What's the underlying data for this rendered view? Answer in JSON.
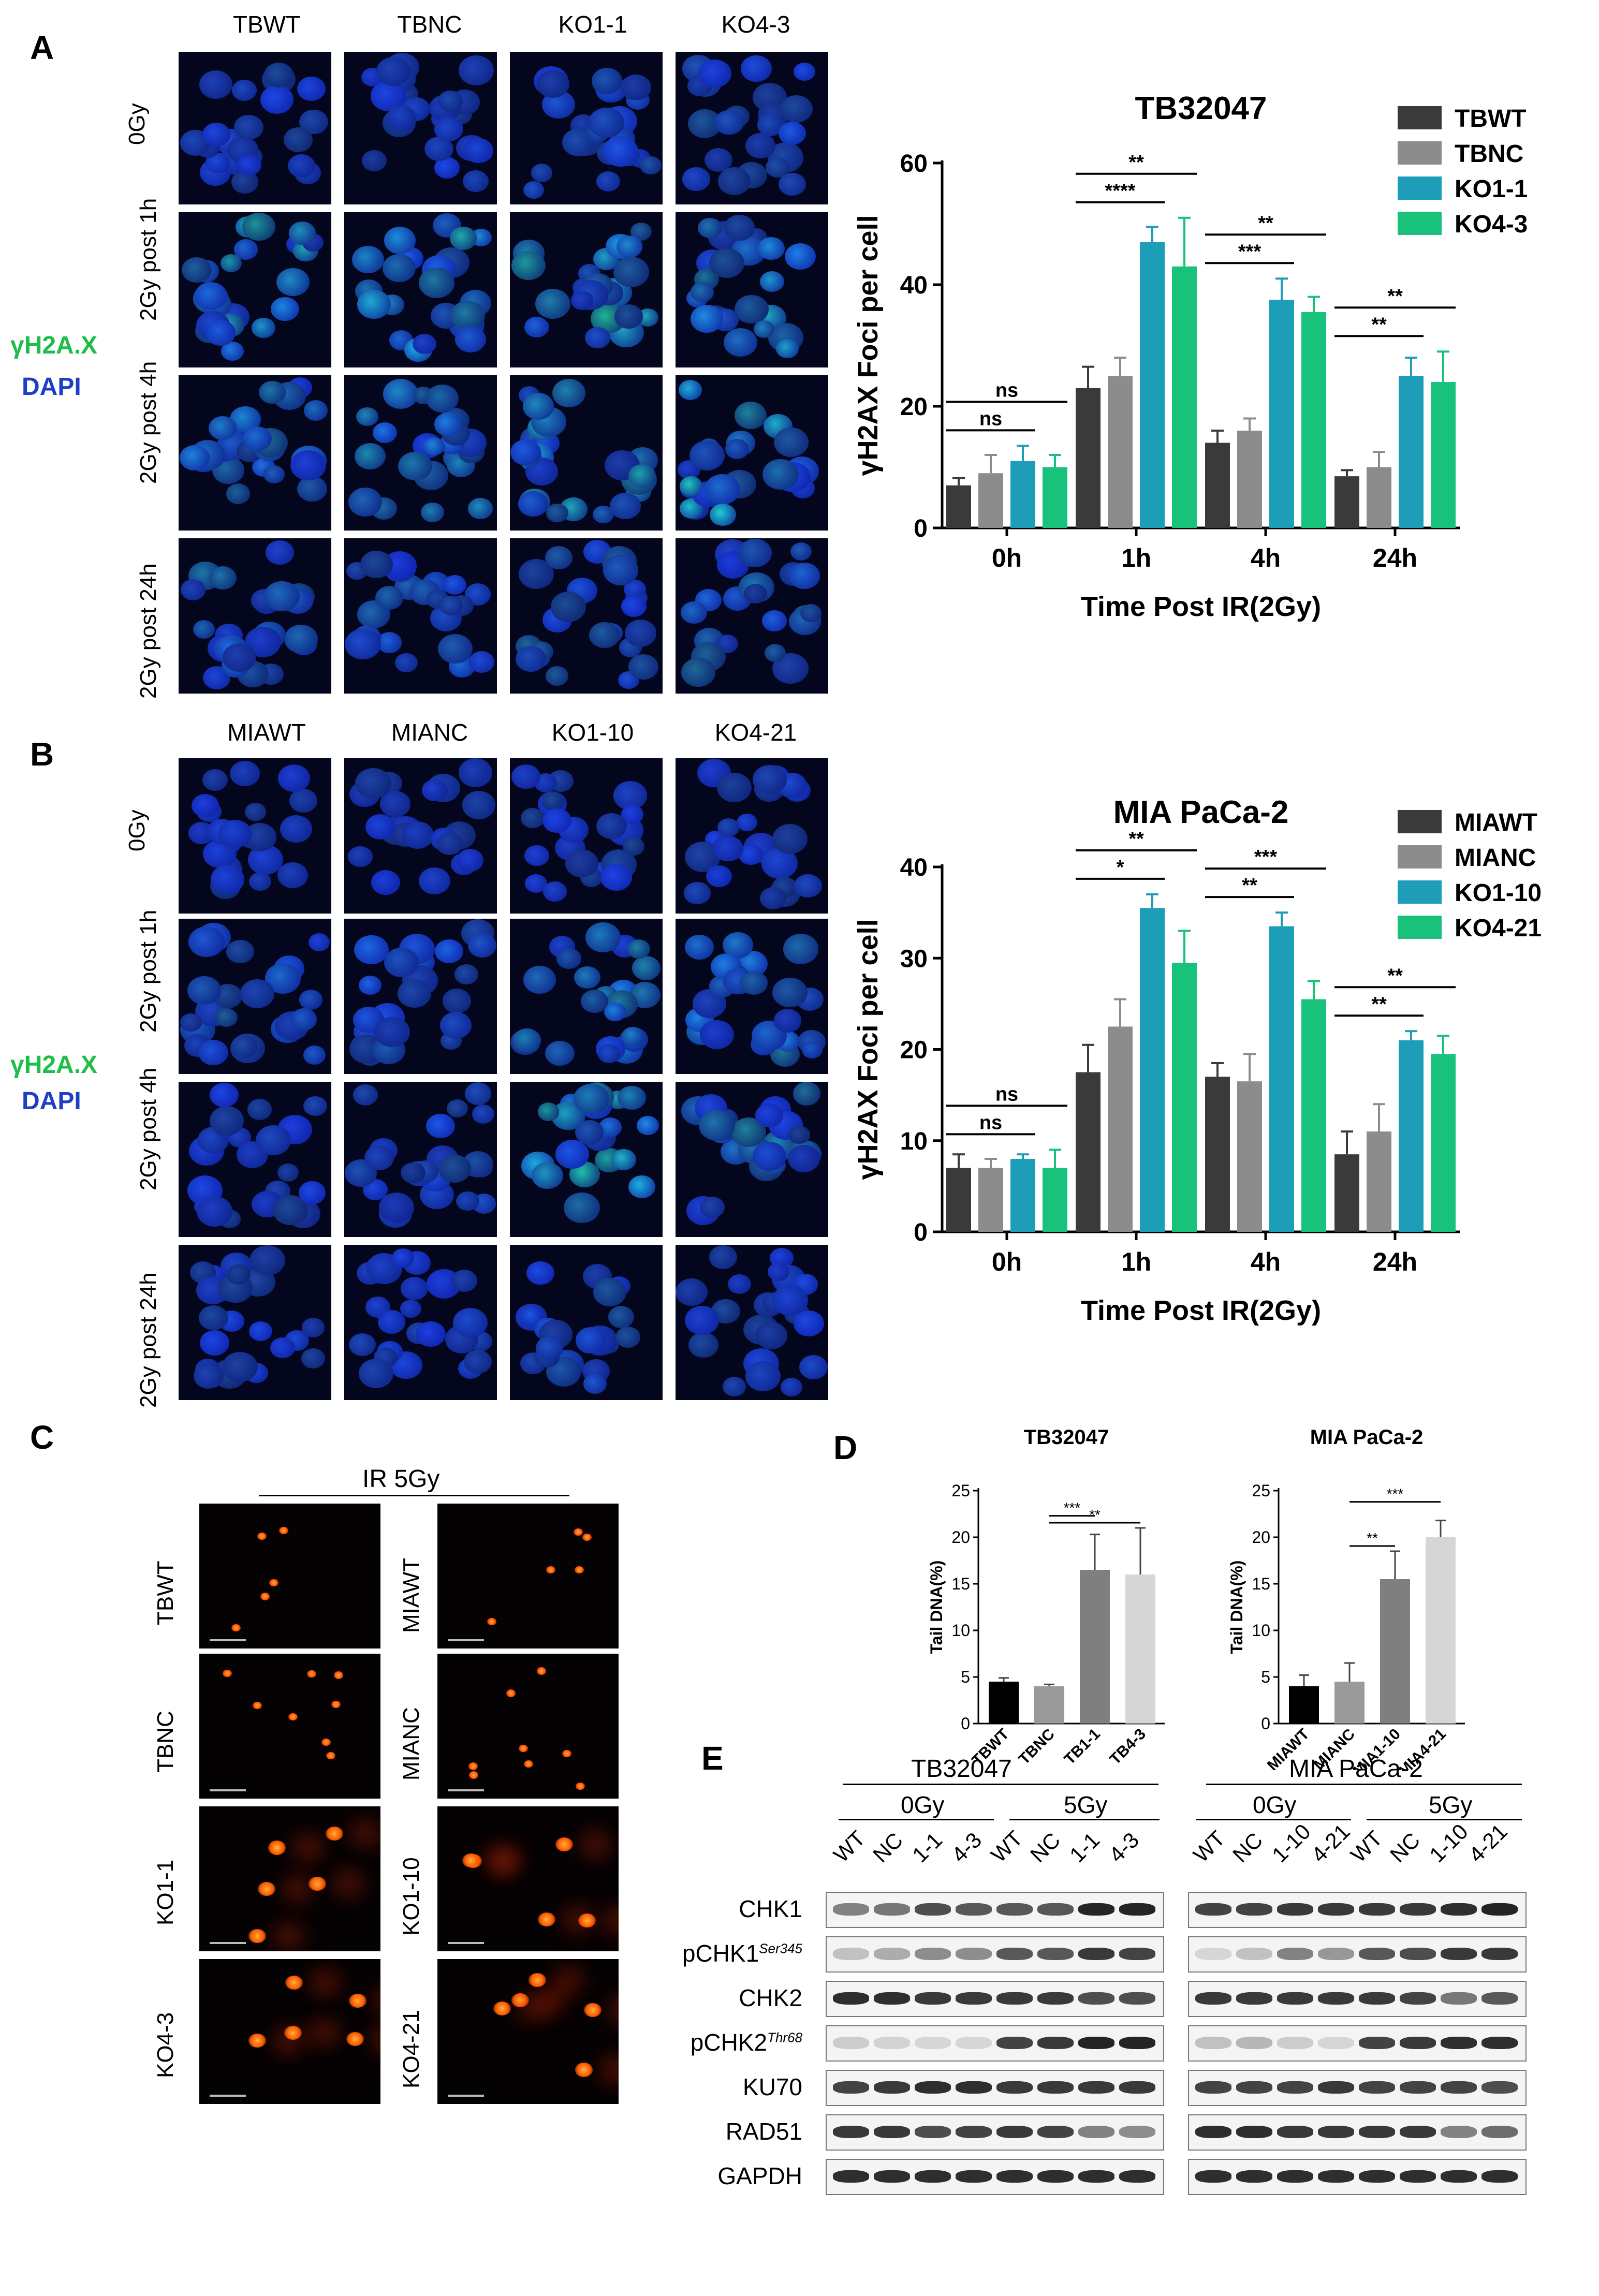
{
  "panels": {
    "A": "A",
    "B": "B",
    "C": "C",
    "D": "D",
    "E": "E"
  },
  "panelA": {
    "columns": [
      "TBWT",
      "TBNC",
      "KO1-1",
      "KO4-3"
    ],
    "rows": [
      "0Gy",
      "2Gy post 1h",
      "2Gy post 4h",
      "2Gy post 24h"
    ],
    "stain_green": "γH2A.X",
    "stain_blue": "DAPI"
  },
  "panelB": {
    "columns": [
      "MIAWT",
      "MIANC",
      "KO1-10",
      "KO4-21"
    ],
    "rows": [
      "0Gy",
      "2Gy post 1h",
      "2Gy post 4h",
      "2Gy post 24h"
    ],
    "stain_green": "γH2A.X",
    "stain_blue": "DAPI"
  },
  "panelC": {
    "header": "IR 5Gy",
    "left_rows": [
      "TBWT",
      "TBNC",
      "KO1-1",
      "KO4-3"
    ],
    "right_rows": [
      "MIAWT",
      "MIANC",
      "KO1-10",
      "KO4-21"
    ]
  },
  "panelE": {
    "group1": "TB32047",
    "group2": "MIA PaCa-2",
    "dose0": "0Gy",
    "dose5": "5Gy",
    "lanes_left": [
      "WT",
      "NC",
      "1-1",
      "4-3",
      "WT",
      "NC",
      "1-1",
      "4-3"
    ],
    "lanes_right": [
      "WT",
      "NC",
      "1-10",
      "4-21",
      "WT",
      "NC",
      "1-10",
      "4-21"
    ],
    "proteins": [
      {
        "name": "CHK1",
        "sup": ""
      },
      {
        "name": "pCHK1",
        "sup": "Ser345"
      },
      {
        "name": "CHK2",
        "sup": ""
      },
      {
        "name": "pCHK2",
        "sup": "Thr68"
      },
      {
        "name": "KU70",
        "sup": ""
      },
      {
        "name": "RAD51",
        "sup": ""
      },
      {
        "name": "GAPDH",
        "sup": ""
      }
    ]
  },
  "colors": {
    "wt": "#3a3a3a",
    "nc": "#8c8c8c",
    "ko1": "#1d9db8",
    "ko4": "#19c27b",
    "bar_d1": "#000000",
    "bar_d2": "#9a9a9a",
    "bar_d3": "#7f7f7f",
    "bar_d4": "#d6d6d6"
  },
  "chart_data": [
    {
      "type": "bar",
      "title": "TB32047",
      "xlabel": "Time Post IR(2Gy)",
      "ylabel": "γH2AX Foci per cell",
      "categories": [
        "0h",
        "1h",
        "4h",
        "24h"
      ],
      "ylim": [
        0,
        60
      ],
      "yticks": [
        0,
        20,
        40,
        60
      ],
      "legend_position": "top-right",
      "series": [
        {
          "name": "TBWT",
          "values": [
            7,
            23,
            14,
            8.5
          ],
          "errors": [
            1.2,
            3.5,
            2,
            1
          ]
        },
        {
          "name": "TBNC",
          "values": [
            9,
            25,
            16,
            10
          ],
          "errors": [
            3,
            3,
            2,
            2.5
          ]
        },
        {
          "name": "KO1-1",
          "values": [
            11,
            47,
            37.5,
            25
          ],
          "errors": [
            2.5,
            2.5,
            3.5,
            3
          ]
        },
        {
          "name": "KO4-3",
          "values": [
            10,
            43,
            35.5,
            24
          ],
          "errors": [
            2,
            8,
            2.5,
            5
          ]
        }
      ],
      "annotations": [
        {
          "group": 0,
          "text": "ns",
          "from": 0,
          "to": 3
        },
        {
          "group": 0,
          "text": "ns",
          "from": 0,
          "to": 2
        },
        {
          "group": 1,
          "text": "**",
          "from": 0,
          "to": 3
        },
        {
          "group": 1,
          "text": "****",
          "from": 0,
          "to": 2
        },
        {
          "group": 2,
          "text": "**",
          "from": 0,
          "to": 3
        },
        {
          "group": 2,
          "text": "***",
          "from": 0,
          "to": 2
        },
        {
          "group": 3,
          "text": "**",
          "from": 0,
          "to": 3
        },
        {
          "group": 3,
          "text": "**",
          "from": 0,
          "to": 2
        }
      ]
    },
    {
      "type": "bar",
      "title": "MIA PaCa-2",
      "xlabel": "Time Post IR(2Gy)",
      "ylabel": "γH2AX Foci per cell",
      "categories": [
        "0h",
        "1h",
        "4h",
        "24h"
      ],
      "ylim": [
        0,
        40
      ],
      "yticks": [
        0,
        10,
        20,
        30,
        40
      ],
      "legend_position": "top-right",
      "series": [
        {
          "name": "MIAWT",
          "values": [
            7,
            17.5,
            17,
            8.5
          ],
          "errors": [
            1.5,
            3,
            1.5,
            2.5
          ]
        },
        {
          "name": "MIANC",
          "values": [
            7,
            22.5,
            16.5,
            11
          ],
          "errors": [
            1,
            3,
            3,
            3
          ]
        },
        {
          "name": "KO1-10",
          "values": [
            8,
            35.5,
            33.5,
            21
          ],
          "errors": [
            0.5,
            1.5,
            1.5,
            1
          ]
        },
        {
          "name": "KO4-21",
          "values": [
            7,
            29.5,
            25.5,
            19.5
          ],
          "errors": [
            2,
            3.5,
            2,
            2
          ]
        }
      ],
      "annotations": [
        {
          "group": 0,
          "text": "ns",
          "from": 0,
          "to": 3
        },
        {
          "group": 0,
          "text": "ns",
          "from": 0,
          "to": 2
        },
        {
          "group": 1,
          "text": "**",
          "from": 0,
          "to": 3
        },
        {
          "group": 1,
          "text": "*",
          "from": 0,
          "to": 2
        },
        {
          "group": 2,
          "text": "***",
          "from": 0,
          "to": 3
        },
        {
          "group": 2,
          "text": "**",
          "from": 0,
          "to": 2
        },
        {
          "group": 3,
          "text": "**",
          "from": 0,
          "to": 3
        },
        {
          "group": 3,
          "text": "**",
          "from": 0,
          "to": 2
        }
      ]
    },
    {
      "type": "bar",
      "title": "TB32047",
      "ylabel": "Tail DNA(%)",
      "categories": [
        "TBWT",
        "TBNC",
        "TB1-1",
        "TB4-3"
      ],
      "values": [
        4.5,
        4,
        16.5,
        16
      ],
      "errors": [
        0.4,
        0.2,
        3.8,
        5
      ],
      "ylim": [
        0,
        25
      ],
      "yticks": [
        0,
        5,
        10,
        15,
        20,
        25
      ],
      "annotations": [
        {
          "text": "**",
          "from": 1,
          "to": 3
        },
        {
          "text": "***",
          "from": 1,
          "to": 2
        }
      ]
    },
    {
      "type": "bar",
      "title": "MIA PaCa-2",
      "ylabel": "Tail DNA(%)",
      "categories": [
        "MIAWT",
        "MIANC",
        "MIA1-10",
        "MIA4-21"
      ],
      "values": [
        4,
        4.5,
        15.5,
        20
      ],
      "errors": [
        1.2,
        2,
        3,
        1.8
      ],
      "ylim": [
        0,
        25
      ],
      "yticks": [
        0,
        5,
        10,
        15,
        20,
        25
      ],
      "annotations": [
        {
          "text": "**",
          "from": 1,
          "to": 2
        },
        {
          "text": "***",
          "from": 1,
          "to": 3
        }
      ]
    }
  ]
}
